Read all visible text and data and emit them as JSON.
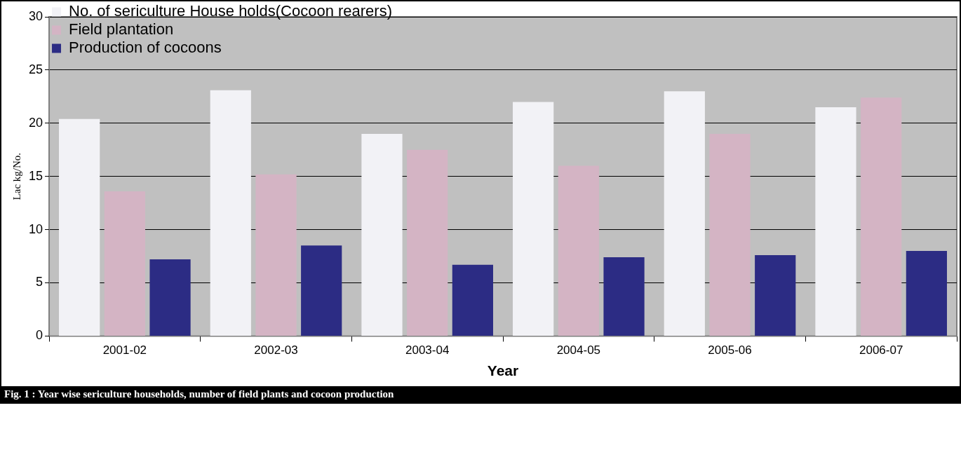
{
  "chart_data": {
    "type": "bar",
    "title": "Fig. 1 :   Year wise sericulture households, number of field plants and cocoon production",
    "xlabel": "Year",
    "ylabel": "Lac kg/No.",
    "categories": [
      "2001-02",
      "2002-03",
      "2003-04",
      "2004-05",
      "2005-06",
      "2006-07"
    ],
    "series": [
      {
        "name": "No. of sericulture House holds(Cocoon rearers)",
        "color": "#f2f2f6",
        "values": [
          20.4,
          23.1,
          19.0,
          22.0,
          23.0,
          21.5
        ]
      },
      {
        "name": "Field plantation",
        "color": "#d4b4c4",
        "values": [
          13.6,
          15.2,
          17.5,
          16.0,
          19.0,
          22.4
        ]
      },
      {
        "name": "Production of cocoons",
        "color": "#2c2c84",
        "values": [
          7.2,
          8.5,
          6.7,
          7.4,
          7.6,
          8.0
        ]
      }
    ],
    "ylim": [
      0,
      30
    ],
    "yticks": [
      0,
      5,
      10,
      15,
      20,
      25,
      30
    ],
    "grid": "y",
    "legend": "top"
  }
}
